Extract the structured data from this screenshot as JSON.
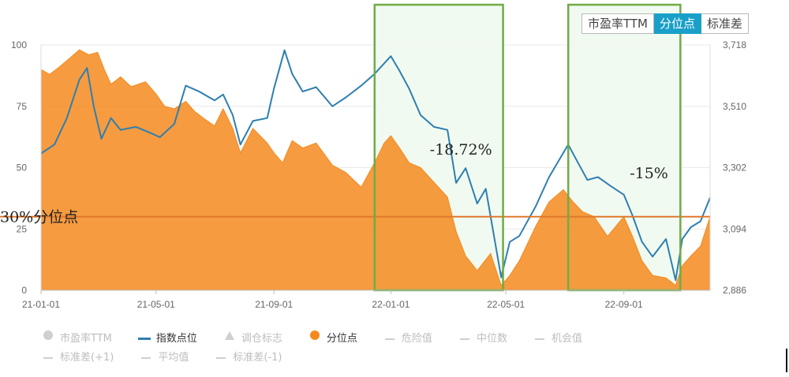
{
  "tabs": [
    {
      "label": "市盈率TTM",
      "active": false
    },
    {
      "label": "分位点",
      "active": true
    },
    {
      "label": "标准差",
      "active": false
    }
  ],
  "legend_row1": [
    {
      "label": "市盈率TTM",
      "symbol": "dot",
      "color": "#cfcfcf",
      "on": false
    },
    {
      "label": "指数点位",
      "symbol": "solid",
      "color": "#2e7fb0",
      "on": true
    },
    {
      "label": "调仓标志",
      "symbol": "triangle",
      "color": "#cfcfcf",
      "on": false
    },
    {
      "label": "分位点",
      "symbol": "dot",
      "color": "#f48a1e",
      "on": true
    },
    {
      "label": "危险值",
      "symbol": "dash",
      "color": "#cfcfcf",
      "on": false
    },
    {
      "label": "中位数",
      "symbol": "dash",
      "color": "#cfcfcf",
      "on": false
    },
    {
      "label": "机会值",
      "symbol": "dash",
      "color": "#cfcfcf",
      "on": false
    }
  ],
  "legend_row2": [
    {
      "label": "标准差(+1)",
      "symbol": "dash",
      "color": "#cfcfcf",
      "on": false
    },
    {
      "label": "平均值",
      "symbol": "dash",
      "color": "#cfcfcf",
      "on": false
    },
    {
      "label": "标准差(-1)",
      "symbol": "dash",
      "color": "#cfcfcf",
      "on": false
    }
  ],
  "chart_data": {
    "type": "area",
    "x_start": "2021-01-01",
    "x_end": "2022-11-30",
    "x_ticks": [
      {
        "date": "2021-01-01",
        "label": "21-01-01"
      },
      {
        "date": "2021-05-01",
        "label": "21-05-01"
      },
      {
        "date": "2021-09-01",
        "label": "21-09-01"
      },
      {
        "date": "2022-01-01",
        "label": "22-01-01"
      },
      {
        "date": "2022-05-01",
        "label": "22-05-01"
      },
      {
        "date": "2022-09-01",
        "label": "22-09-01"
      }
    ],
    "y_left": {
      "min": 0,
      "max": 100,
      "ticks": [
        "0",
        "25",
        "50",
        "75",
        "100"
      ]
    },
    "y_right": {
      "min": 2886,
      "max": 3718,
      "ticks": [
        "2,886",
        "3,094",
        "3,302",
        "3,510",
        "3,718"
      ]
    },
    "colors": {
      "percentile": "#f48a1e",
      "index": "#2e7fb0",
      "highlight_box": "#6fac46",
      "threshold": "#e0782a"
    },
    "series": [
      {
        "name": "分位点",
        "axis": "left",
        "points": [
          [
            "2021-01-01",
            90
          ],
          [
            "2021-01-10",
            88
          ],
          [
            "2021-01-20",
            91
          ],
          [
            "2021-02-01",
            95
          ],
          [
            "2021-02-10",
            98
          ],
          [
            "2021-02-20",
            96
          ],
          [
            "2021-03-01",
            97
          ],
          [
            "2021-03-08",
            90
          ],
          [
            "2021-03-15",
            84
          ],
          [
            "2021-03-25",
            87
          ],
          [
            "2021-04-05",
            83
          ],
          [
            "2021-04-20",
            85
          ],
          [
            "2021-05-01",
            80
          ],
          [
            "2021-05-10",
            75
          ],
          [
            "2021-05-20",
            74
          ],
          [
            "2021-06-01",
            77
          ],
          [
            "2021-06-10",
            73
          ],
          [
            "2021-06-20",
            70
          ],
          [
            "2021-07-01",
            67
          ],
          [
            "2021-07-10",
            74
          ],
          [
            "2021-07-20",
            66
          ],
          [
            "2021-07-28",
            56
          ],
          [
            "2021-08-10",
            66
          ],
          [
            "2021-08-25",
            60
          ],
          [
            "2021-09-01",
            56
          ],
          [
            "2021-09-10",
            52
          ],
          [
            "2021-09-20",
            61
          ],
          [
            "2021-10-01",
            58
          ],
          [
            "2021-10-15",
            60
          ],
          [
            "2021-11-01",
            51
          ],
          [
            "2021-11-15",
            48
          ],
          [
            "2021-12-01",
            42
          ],
          [
            "2021-12-15",
            52
          ],
          [
            "2021-12-25",
            60
          ],
          [
            "2022-01-01",
            63
          ],
          [
            "2022-01-10",
            58
          ],
          [
            "2022-01-20",
            52
          ],
          [
            "2022-02-01",
            50
          ],
          [
            "2022-02-15",
            44
          ],
          [
            "2022-03-01",
            38
          ],
          [
            "2022-03-10",
            24
          ],
          [
            "2022-03-20",
            14
          ],
          [
            "2022-04-01",
            8
          ],
          [
            "2022-04-15",
            15
          ],
          [
            "2022-04-26",
            2
          ],
          [
            "2022-05-05",
            6
          ],
          [
            "2022-05-15",
            12
          ],
          [
            "2022-06-01",
            26
          ],
          [
            "2022-06-15",
            36
          ],
          [
            "2022-06-30",
            41
          ],
          [
            "2022-07-10",
            36
          ],
          [
            "2022-07-20",
            32
          ],
          [
            "2022-08-01",
            30
          ],
          [
            "2022-08-15",
            22
          ],
          [
            "2022-09-01",
            30
          ],
          [
            "2022-09-10",
            22
          ],
          [
            "2022-09-20",
            12
          ],
          [
            "2022-10-01",
            6
          ],
          [
            "2022-10-15",
            5
          ],
          [
            "2022-10-25",
            2
          ],
          [
            "2022-11-01",
            10
          ],
          [
            "2022-11-10",
            14
          ],
          [
            "2022-11-20",
            18
          ],
          [
            "2022-11-30",
            30
          ]
        ]
      },
      {
        "name": "指数点位",
        "axis": "right",
        "points": [
          [
            "2021-01-01",
            3350
          ],
          [
            "2021-01-15",
            3380
          ],
          [
            "2021-01-28",
            3470
          ],
          [
            "2021-02-10",
            3600
          ],
          [
            "2021-02-18",
            3640
          ],
          [
            "2021-02-25",
            3510
          ],
          [
            "2021-03-05",
            3400
          ],
          [
            "2021-03-15",
            3470
          ],
          [
            "2021-03-25",
            3430
          ],
          [
            "2021-04-10",
            3440
          ],
          [
            "2021-04-25",
            3420
          ],
          [
            "2021-05-05",
            3405
          ],
          [
            "2021-05-20",
            3450
          ],
          [
            "2021-06-01",
            3580
          ],
          [
            "2021-06-15",
            3560
          ],
          [
            "2021-07-01",
            3530
          ],
          [
            "2021-07-10",
            3550
          ],
          [
            "2021-07-20",
            3480
          ],
          [
            "2021-07-28",
            3380
          ],
          [
            "2021-08-10",
            3460
          ],
          [
            "2021-08-25",
            3470
          ],
          [
            "2021-09-01",
            3570
          ],
          [
            "2021-09-12",
            3700
          ],
          [
            "2021-09-20",
            3620
          ],
          [
            "2021-10-01",
            3560
          ],
          [
            "2021-10-15",
            3575
          ],
          [
            "2021-11-01",
            3510
          ],
          [
            "2021-11-15",
            3540
          ],
          [
            "2021-12-01",
            3580
          ],
          [
            "2021-12-15",
            3620
          ],
          [
            "2022-01-01",
            3680
          ],
          [
            "2022-01-10",
            3630
          ],
          [
            "2022-01-20",
            3570
          ],
          [
            "2022-02-01",
            3480
          ],
          [
            "2022-02-15",
            3440
          ],
          [
            "2022-03-01",
            3430
          ],
          [
            "2022-03-10",
            3250
          ],
          [
            "2022-03-20",
            3300
          ],
          [
            "2022-04-01",
            3180
          ],
          [
            "2022-04-10",
            3230
          ],
          [
            "2022-04-26",
            2930
          ],
          [
            "2022-05-05",
            3050
          ],
          [
            "2022-05-15",
            3070
          ],
          [
            "2022-06-01",
            3170
          ],
          [
            "2022-06-15",
            3270
          ],
          [
            "2022-07-05",
            3380
          ],
          [
            "2022-07-15",
            3320
          ],
          [
            "2022-07-25",
            3260
          ],
          [
            "2022-08-05",
            3270
          ],
          [
            "2022-08-18",
            3240
          ],
          [
            "2022-09-01",
            3210
          ],
          [
            "2022-09-10",
            3140
          ],
          [
            "2022-09-20",
            3050
          ],
          [
            "2022-10-01",
            3000
          ],
          [
            "2022-10-15",
            3060
          ],
          [
            "2022-10-25",
            2920
          ],
          [
            "2022-11-01",
            3060
          ],
          [
            "2022-11-10",
            3100
          ],
          [
            "2022-11-20",
            3120
          ],
          [
            "2022-11-30",
            3200
          ]
        ]
      }
    ],
    "reference_line": {
      "value": 30,
      "axis": "left",
      "label": "30%分位点"
    },
    "highlights": [
      {
        "from": "2021-12-15",
        "to": "2022-04-28",
        "label": "-18.72%"
      },
      {
        "from": "2022-07-05",
        "to": "2022-10-30",
        "label": "-15%"
      }
    ],
    "grid": "horizontal",
    "legend_position": "bottom"
  }
}
